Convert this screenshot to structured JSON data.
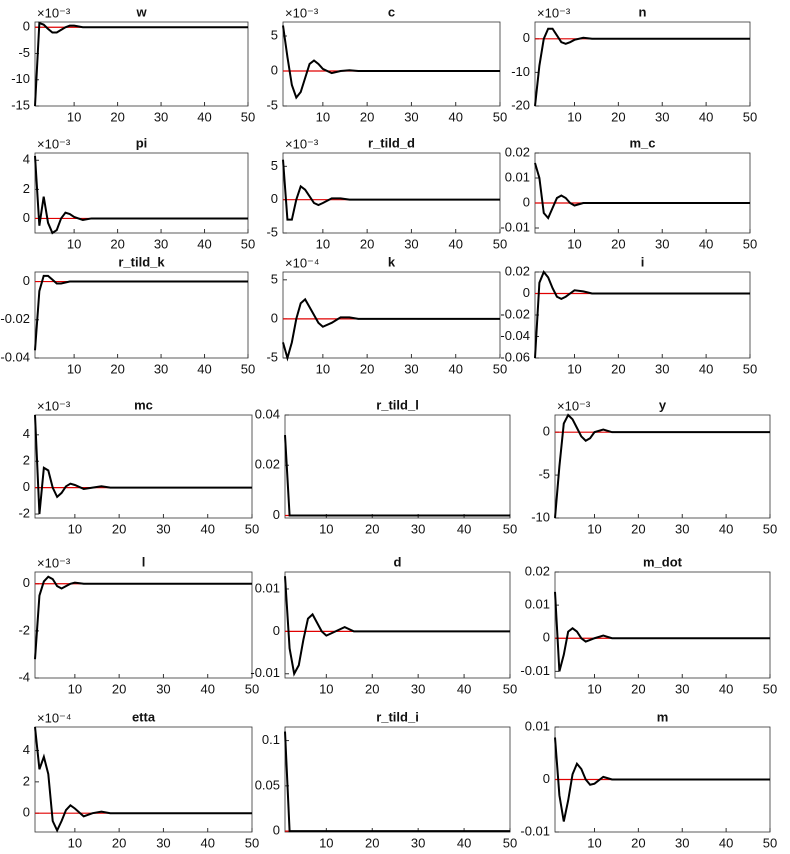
{
  "chart_data": [
    {
      "type": "line",
      "title": "w",
      "exponent_label": "×10⁻³",
      "xlim": [
        1,
        50
      ],
      "xticks": [
        10,
        20,
        30,
        40,
        50
      ],
      "ylim": [
        -15,
        1
      ],
      "yticks": [
        -15,
        -10,
        -5,
        0
      ],
      "hline": 0,
      "hline_color": "#e00000",
      "x": [
        1,
        2,
        3,
        4,
        5,
        6,
        7,
        8,
        9,
        10,
        12,
        14,
        16,
        18,
        20,
        25,
        50
      ],
      "series": [
        {
          "color": "#000000",
          "values": [
            -15,
            0.8,
            0.5,
            -0.3,
            -1,
            -1,
            -0.5,
            0,
            0.3,
            0.3,
            0,
            0,
            0,
            0,
            0,
            0,
            0
          ]
        }
      ]
    },
    {
      "type": "line",
      "title": "c",
      "exponent_label": "×10⁻³",
      "xlim": [
        1,
        50
      ],
      "xticks": [
        10,
        20,
        30,
        40,
        50
      ],
      "ylim": [
        -5,
        7
      ],
      "yticks": [
        -5,
        0,
        5
      ],
      "hline": 0,
      "hline_color": "#e00000",
      "x": [
        1,
        2,
        3,
        4,
        5,
        6,
        7,
        8,
        9,
        10,
        12,
        14,
        16,
        18,
        20,
        25,
        50
      ],
      "series": [
        {
          "color": "#000000",
          "values": [
            6.5,
            2,
            -2,
            -3.8,
            -3,
            -1,
            1,
            1.5,
            1,
            0.3,
            -0.3,
            0,
            0.1,
            0,
            0,
            0,
            0
          ]
        }
      ]
    },
    {
      "type": "line",
      "title": "n",
      "exponent_label": "×10⁻³",
      "xlim": [
        1,
        50
      ],
      "xticks": [
        10,
        20,
        30,
        40,
        50
      ],
      "ylim": [
        -20,
        5
      ],
      "yticks": [
        -20,
        -10,
        0
      ],
      "hline": 0,
      "hline_color": "#e00000",
      "x": [
        1,
        2,
        3,
        4,
        5,
        6,
        7,
        8,
        9,
        10,
        12,
        14,
        16,
        18,
        20,
        25,
        50
      ],
      "series": [
        {
          "color": "#000000",
          "values": [
            -20,
            -8,
            0,
            3,
            3,
            1,
            -1,
            -1.5,
            -1,
            -0.3,
            0.3,
            0,
            0,
            0,
            0,
            0,
            0
          ]
        }
      ]
    },
    {
      "type": "line",
      "title": "pi",
      "exponent_label": "×10⁻³",
      "xlim": [
        1,
        50
      ],
      "xticks": [
        10,
        20,
        30,
        40,
        50
      ],
      "ylim": [
        -1,
        4.5
      ],
      "yticks": [
        0,
        2,
        4
      ],
      "hline": 0,
      "hline_color": "#e00000",
      "x": [
        1,
        2,
        3,
        4,
        5,
        6,
        7,
        8,
        9,
        10,
        12,
        14,
        16,
        18,
        20,
        25,
        50
      ],
      "series": [
        {
          "color": "#000000",
          "values": [
            4.3,
            -0.5,
            1.5,
            -0.3,
            -1,
            -0.8,
            0,
            0.4,
            0.3,
            0.1,
            -0.1,
            0,
            0,
            0,
            0,
            0,
            0
          ]
        }
      ]
    },
    {
      "type": "line",
      "title": "r_tild_d",
      "exponent_label": "×10⁻³",
      "xlim": [
        1,
        50
      ],
      "xticks": [
        10,
        20,
        30,
        40,
        50
      ],
      "ylim": [
        -5,
        7
      ],
      "yticks": [
        -5,
        0,
        5
      ],
      "hline": 0,
      "hline_color": "#e00000",
      "x": [
        1,
        2,
        3,
        4,
        5,
        6,
        7,
        8,
        9,
        10,
        12,
        14,
        16,
        18,
        20,
        25,
        50
      ],
      "series": [
        {
          "color": "#000000",
          "values": [
            6,
            -3,
            -3,
            0,
            2,
            1.5,
            0.5,
            -0.5,
            -0.8,
            -0.5,
            0.2,
            0.2,
            0,
            0,
            0,
            0,
            0
          ]
        }
      ]
    },
    {
      "type": "line",
      "title": "m_c",
      "xlim": [
        1,
        50
      ],
      "xticks": [
        10,
        20,
        30,
        40,
        50
      ],
      "ylim": [
        -0.012,
        0.02
      ],
      "yticks": [
        -0.01,
        0,
        0.01,
        0.02
      ],
      "hline": 0,
      "hline_color": "#e00000",
      "x": [
        1,
        2,
        3,
        4,
        5,
        6,
        7,
        8,
        9,
        10,
        12,
        14,
        16,
        18,
        20,
        25,
        50
      ],
      "series": [
        {
          "color": "#000000",
          "values": [
            0.016,
            0.01,
            -0.004,
            -0.006,
            -0.002,
            0.002,
            0.003,
            0.002,
            0,
            -0.001,
            0,
            0,
            0,
            0,
            0,
            0,
            0
          ]
        }
      ]
    },
    {
      "type": "line",
      "title": "r_tild_k",
      "xlim": [
        1,
        50
      ],
      "xticks": [
        10,
        20,
        30,
        40,
        50
      ],
      "ylim": [
        -0.04,
        0.005
      ],
      "yticks": [
        -0.04,
        -0.02,
        0
      ],
      "hline": 0,
      "hline_color": "#e00000",
      "x": [
        1,
        2,
        3,
        4,
        5,
        6,
        7,
        8,
        9,
        10,
        12,
        14,
        16,
        18,
        20,
        25,
        50
      ],
      "series": [
        {
          "color": "#000000",
          "values": [
            -0.036,
            -0.005,
            0.003,
            0.003,
            0.001,
            -0.001,
            -0.001,
            -0.0005,
            0,
            0,
            0,
            0,
            0,
            0,
            0,
            0,
            0
          ]
        }
      ]
    },
    {
      "type": "line",
      "title": "k",
      "exponent_label": "×10⁻⁴",
      "xlim": [
        1,
        50
      ],
      "xticks": [
        10,
        20,
        30,
        40,
        50
      ],
      "ylim": [
        -5,
        6
      ],
      "yticks": [
        -5,
        0,
        5
      ],
      "hline": 0,
      "hline_color": "#e00000",
      "x": [
        1,
        2,
        3,
        4,
        5,
        6,
        7,
        8,
        9,
        10,
        12,
        14,
        16,
        18,
        20,
        25,
        50
      ],
      "series": [
        {
          "color": "#000000",
          "values": [
            -3,
            -5,
            -3,
            0,
            2,
            2.5,
            1.5,
            0.5,
            -0.5,
            -1,
            -0.5,
            0.2,
            0.2,
            0,
            0,
            0,
            0
          ]
        }
      ]
    },
    {
      "type": "line",
      "title": "i",
      "xlim": [
        1,
        50
      ],
      "xticks": [
        10,
        20,
        30,
        40,
        50
      ],
      "ylim": [
        -0.06,
        0.02
      ],
      "yticks": [
        -0.06,
        -0.04,
        -0.02,
        0,
        0.02
      ],
      "hline": 0,
      "hline_color": "#e00000",
      "x": [
        1,
        2,
        3,
        4,
        5,
        6,
        7,
        8,
        9,
        10,
        12,
        14,
        16,
        18,
        20,
        25,
        50
      ],
      "series": [
        {
          "color": "#000000",
          "values": [
            -0.06,
            0.01,
            0.02,
            0.015,
            0.005,
            -0.003,
            -0.005,
            -0.003,
            0,
            0.003,
            0.002,
            0,
            0,
            0,
            0,
            0,
            0
          ]
        }
      ]
    },
    {
      "type": "line",
      "title": "mc",
      "exponent_label": "×10⁻³",
      "xlim": [
        1,
        50
      ],
      "xticks": [
        10,
        20,
        30,
        40,
        50
      ],
      "ylim": [
        -2.3,
        5.5
      ],
      "yticks": [
        -2,
        0,
        2,
        4
      ],
      "hline": 0,
      "hline_color": "#e00000",
      "x": [
        1,
        2,
        3,
        4,
        5,
        6,
        7,
        8,
        9,
        10,
        12,
        14,
        16,
        18,
        20,
        25,
        50
      ],
      "series": [
        {
          "color": "#000000",
          "values": [
            5.5,
            -2,
            1.5,
            1.3,
            0,
            -0.7,
            -0.4,
            0.1,
            0.3,
            0.2,
            -0.1,
            0,
            0.1,
            0,
            0,
            0,
            0
          ]
        }
      ]
    },
    {
      "type": "line",
      "title": "r_tild_l",
      "xlim": [
        1,
        50
      ],
      "xticks": [
        10,
        20,
        30,
        40,
        50
      ],
      "ylim": [
        -0.001,
        0.04
      ],
      "yticks": [
        0,
        0.02,
        0.04
      ],
      "hline": 0,
      "hline_color": "#e00000",
      "x": [
        1,
        2,
        3,
        4,
        5,
        6,
        7,
        8,
        9,
        10,
        12,
        14,
        16,
        18,
        20,
        25,
        50
      ],
      "series": [
        {
          "color": "#000000",
          "values": [
            0.032,
            0,
            0,
            0,
            0,
            0,
            0,
            0,
            0,
            0,
            0,
            0,
            0,
            0,
            0,
            0,
            0
          ]
        }
      ]
    },
    {
      "type": "line",
      "title": "y",
      "exponent_label": "×10⁻³",
      "xlim": [
        1,
        50
      ],
      "xticks": [
        10,
        20,
        30,
        40,
        50
      ],
      "ylim": [
        -10,
        2
      ],
      "yticks": [
        -10,
        -5,
        0
      ],
      "hline": 0,
      "hline_color": "#e00000",
      "x": [
        1,
        2,
        3,
        4,
        5,
        6,
        7,
        8,
        9,
        10,
        12,
        14,
        16,
        18,
        20,
        25,
        50
      ],
      "series": [
        {
          "color": "#000000",
          "values": [
            -10,
            -4,
            1,
            2,
            1.5,
            0.5,
            -0.5,
            -1,
            -0.7,
            0,
            0.3,
            0,
            0,
            0,
            0,
            0,
            0
          ]
        }
      ]
    },
    {
      "type": "line",
      "title": "l",
      "exponent_label": "×10⁻³",
      "xlim": [
        1,
        50
      ],
      "xticks": [
        10,
        20,
        30,
        40,
        50
      ],
      "ylim": [
        -4,
        0.5
      ],
      "yticks": [
        -4,
        -2,
        0
      ],
      "hline": 0,
      "hline_color": "#e00000",
      "x": [
        1,
        2,
        3,
        4,
        5,
        6,
        7,
        8,
        9,
        10,
        12,
        14,
        16,
        18,
        20,
        25,
        50
      ],
      "series": [
        {
          "color": "#000000",
          "values": [
            -3.2,
            -0.5,
            0.1,
            0.3,
            0.2,
            -0.1,
            -0.2,
            -0.1,
            0,
            0.05,
            0,
            0,
            0,
            0,
            0,
            0,
            0
          ]
        }
      ]
    },
    {
      "type": "line",
      "title": "d",
      "xlim": [
        1,
        50
      ],
      "xticks": [
        10,
        20,
        30,
        40,
        50
      ],
      "ylim": [
        -0.011,
        0.014
      ],
      "yticks": [
        -0.01,
        0,
        0.01
      ],
      "hline": 0,
      "hline_color": "#e00000",
      "x": [
        1,
        2,
        3,
        4,
        5,
        6,
        7,
        8,
        9,
        10,
        12,
        14,
        16,
        18,
        20,
        25,
        50
      ],
      "series": [
        {
          "color": "#000000",
          "values": [
            0.013,
            -0.004,
            -0.01,
            -0.008,
            -0.002,
            0.003,
            0.004,
            0.002,
            0,
            -0.001,
            0,
            0.001,
            0,
            0,
            0,
            0,
            0
          ]
        }
      ]
    },
    {
      "type": "line",
      "title": "m_dot",
      "xlim": [
        1,
        50
      ],
      "xticks": [
        10,
        20,
        30,
        40,
        50
      ],
      "ylim": [
        -0.012,
        0.02
      ],
      "yticks": [
        -0.01,
        0,
        0.01,
        0.02
      ],
      "hline": 0,
      "hline_color": "#e00000",
      "x": [
        1,
        2,
        3,
        4,
        5,
        6,
        7,
        8,
        9,
        10,
        12,
        14,
        16,
        18,
        20,
        25,
        50
      ],
      "series": [
        {
          "color": "#000000",
          "values": [
            0.014,
            -0.01,
            -0.005,
            0.002,
            0.003,
            0.002,
            0,
            -0.001,
            -0.0005,
            0,
            0.0008,
            0,
            0,
            0,
            0,
            0,
            0
          ]
        }
      ]
    },
    {
      "type": "line",
      "title": "etta",
      "exponent_label": "×10⁻⁴",
      "xlim": [
        1,
        50
      ],
      "xticks": [
        10,
        20,
        30,
        40,
        50
      ],
      "ylim": [
        -1.2,
        5.5
      ],
      "yticks": [
        0,
        2,
        4
      ],
      "hline": 0,
      "hline_color": "#e00000",
      "x": [
        1,
        2,
        3,
        4,
        5,
        6,
        7,
        8,
        9,
        10,
        12,
        14,
        16,
        18,
        20,
        25,
        50
      ],
      "series": [
        {
          "color": "#000000",
          "values": [
            5.5,
            2.8,
            3.6,
            2.5,
            -0.5,
            -1.1,
            -0.5,
            0.2,
            0.5,
            0.3,
            -0.2,
            0,
            0.1,
            0,
            0,
            0,
            0
          ]
        }
      ]
    },
    {
      "type": "line",
      "title": "r_tild_i",
      "xlim": [
        1,
        50
      ],
      "xticks": [
        10,
        20,
        30,
        40,
        50
      ],
      "ylim": [
        -0.001,
        0.115
      ],
      "yticks": [
        0,
        0.05,
        0.1
      ],
      "hline": 0,
      "hline_color": "#e00000",
      "x": [
        1,
        2,
        3,
        4,
        5,
        6,
        7,
        8,
        9,
        10,
        12,
        14,
        16,
        18,
        20,
        25,
        50
      ],
      "series": [
        {
          "color": "#000000",
          "values": [
            0.11,
            0,
            0,
            0,
            0,
            0,
            0,
            0,
            0,
            0,
            0,
            0,
            0,
            0,
            0,
            0,
            0
          ]
        }
      ]
    },
    {
      "type": "line",
      "title": "m",
      "xlim": [
        1,
        50
      ],
      "xticks": [
        10,
        20,
        30,
        40,
        50
      ],
      "ylim": [
        -0.01,
        0.01
      ],
      "yticks": [
        -0.01,
        0,
        0.01
      ],
      "hline": 0,
      "hline_color": "#e00000",
      "x": [
        1,
        2,
        3,
        4,
        5,
        6,
        7,
        8,
        9,
        10,
        12,
        14,
        16,
        18,
        20,
        25,
        50
      ],
      "series": [
        {
          "color": "#000000",
          "values": [
            0.008,
            -0.003,
            -0.008,
            -0.004,
            0.001,
            0.003,
            0.002,
            0,
            -0.001,
            -0.0008,
            0.0005,
            0,
            0,
            0,
            0,
            0,
            0
          ]
        }
      ]
    }
  ]
}
